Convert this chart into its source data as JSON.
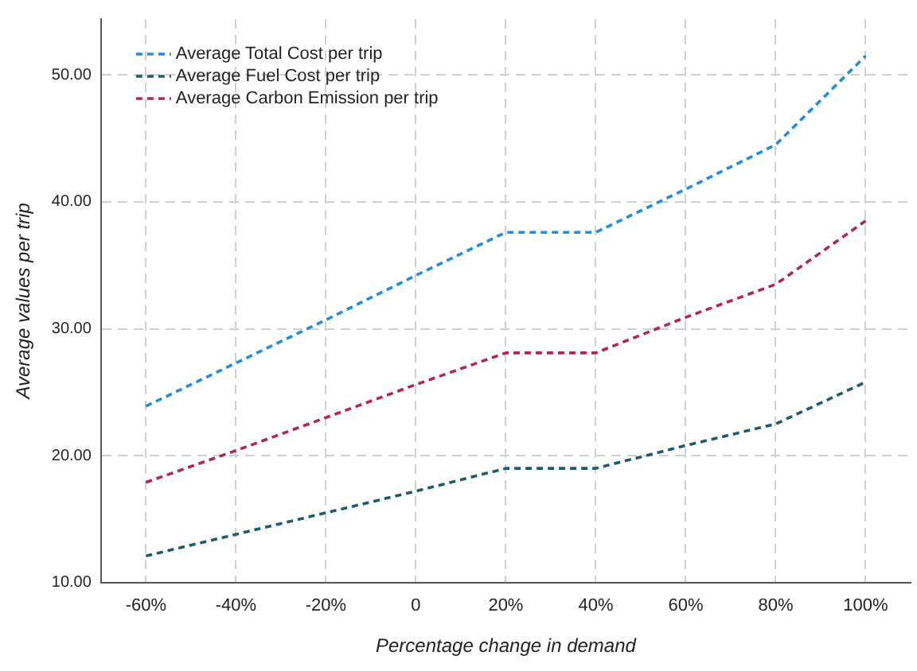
{
  "chart_data": {
    "type": "line",
    "xlabel": "Percentage change in demand",
    "ylabel": "Average values per trip",
    "categories": [
      "-60%",
      "-40%",
      "-20%",
      "0",
      "20%",
      "40%",
      "60%",
      "80%",
      "100%"
    ],
    "series": [
      {
        "name": "Average Total Cost per trip",
        "color": "#1f8de0",
        "values": [
          23.9,
          27.3,
          30.7,
          34.2,
          37.6,
          37.6,
          41.0,
          44.5,
          51.5
        ]
      },
      {
        "name": "Average Fuel Cost per trip",
        "color": "#1a5e6e",
        "values": [
          12.1,
          13.8,
          15.5,
          17.2,
          19.0,
          19.0,
          20.8,
          22.5,
          25.8
        ]
      },
      {
        "name": "Average Carbon Emission per trip",
        "color": "#b0265a",
        "values": [
          17.9,
          20.4,
          23.0,
          25.6,
          28.1,
          28.1,
          30.9,
          33.5,
          38.5
        ]
      }
    ],
    "ylim": [
      10,
      54.4
    ],
    "yticks": [
      {
        "value": 10,
        "label": "10.00"
      },
      {
        "value": 20,
        "label": "20.00"
      },
      {
        "value": 30,
        "label": "30.00"
      },
      {
        "value": 40,
        "label": "40.00"
      },
      {
        "value": 50,
        "label": "50.00"
      }
    ],
    "grid": true,
    "legend": "top left",
    "marker": "none",
    "line_style": "dashed"
  }
}
